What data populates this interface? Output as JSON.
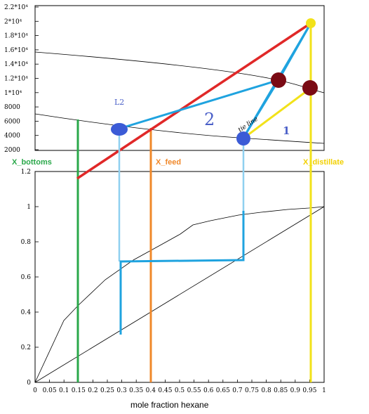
{
  "top_plot": {
    "y_ticks": [
      "2.2*10⁴",
      "2*10⁴",
      "1.8*10⁴",
      "1.6*10⁴",
      "1.4*10⁴",
      "1.2*10⁴",
      "1*10⁴",
      "8000",
      "6000",
      "4000",
      "2000"
    ],
    "annotations": {
      "L2": "L2",
      "stage2": "2",
      "stage1": "1",
      "handwritten": "tie line"
    }
  },
  "bottom_plot": {
    "y_ticks": [
      "1.2",
      "1",
      "0.8",
      "0.6",
      "0.4",
      "0.2",
      "0"
    ],
    "x_ticks": [
      "0",
      "0.05",
      "0.1",
      "0.15",
      "0.2",
      "0.25",
      "0.3",
      "0.35",
      "0.4",
      "0.45",
      "0.5",
      "0.55",
      "0.6",
      "0.65",
      "0.7",
      "0.75",
      "0.8",
      "0.85",
      "0.9",
      "0.95",
      "1"
    ],
    "xlabel": "mole fraction hexane"
  },
  "markers": {
    "x_bottoms": "X_bottoms",
    "x_feed": "X_feed",
    "x_distillate": "X_distillate"
  },
  "colors": {
    "bottoms": "#2aa84a",
    "feed": "#f0882a",
    "distillate": "#f2e21a",
    "construction": "#1fa3df",
    "operating": "#e02828",
    "point": "#3b5bd6",
    "dark_point": "#7a0a14",
    "stage_label": "#4a5fc8"
  }
}
